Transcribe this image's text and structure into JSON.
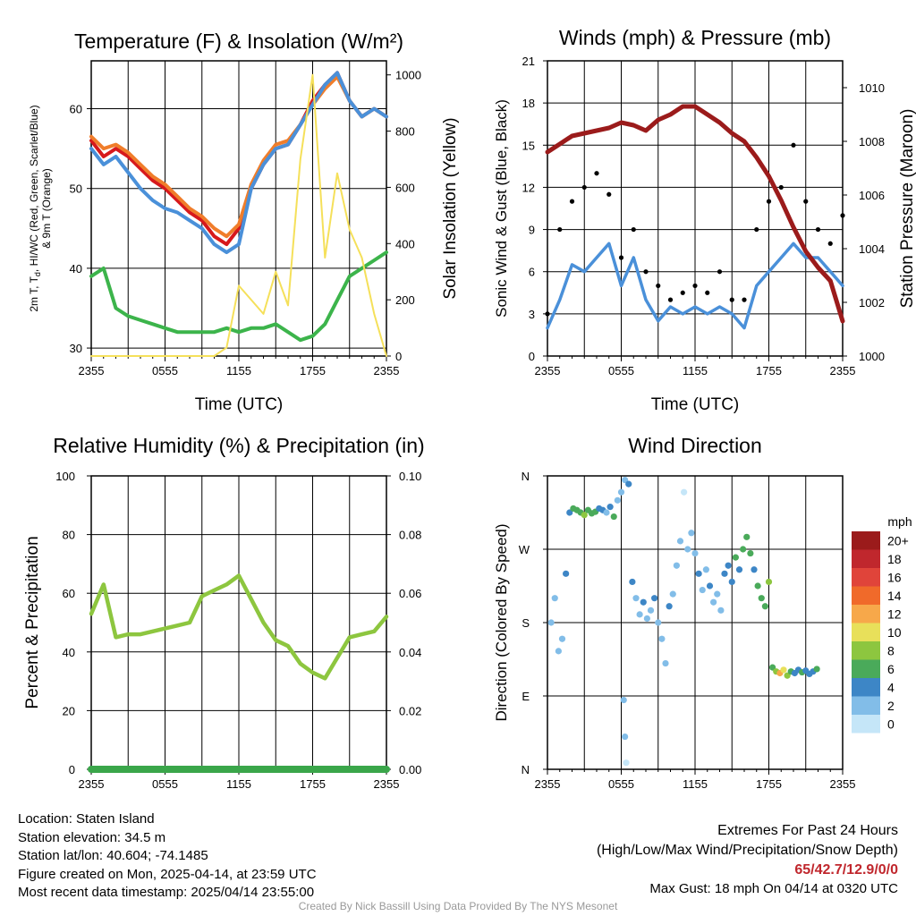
{
  "chart_data": [
    {
      "type": "line",
      "title": "Temperature (F) & Insolation (W/m²)",
      "xlabel": "Time (UTC)",
      "ylabel": "2m T, Td, HI/WC (Red, Green, Scarlet/Blue) & 9m T (Orange)",
      "ylabel_left_line1": "2m T, T",
      "ylabel_left_sub": "d",
      "ylabel_left_line1b": ", HI/WC (Red, Green, Scarlet/Blue)",
      "ylabel_left_line2": "& 9m T (Orange)",
      "ylabel_right": "Solar Insolation (Yellow)",
      "x_ticks": [
        "2355",
        "0555",
        "1155",
        "1755",
        "2355"
      ],
      "ylim": [
        29,
        66
      ],
      "y_ticks": [
        30,
        40,
        50,
        60
      ],
      "y2lim": [
        0,
        1050
      ],
      "y2_ticks": [
        0,
        200,
        400,
        600,
        800,
        1000
      ],
      "x_hours": [
        0,
        1,
        2,
        3,
        4,
        5,
        6,
        7,
        8,
        9,
        10,
        11,
        12,
        13,
        14,
        15,
        16,
        17,
        18,
        19,
        20,
        21,
        22,
        23,
        24
      ],
      "series": [
        {
          "name": "2m T",
          "color": "#d7191c",
          "values": [
            56,
            54,
            55,
            54,
            52.5,
            51,
            50,
            48.5,
            47,
            46,
            44,
            43,
            45,
            50,
            53,
            55,
            55.5,
            58,
            61,
            63,
            64.5,
            61,
            59,
            60,
            59
          ]
        },
        {
          "name": "9m T",
          "color": "#f07d2a",
          "values": [
            56.5,
            55,
            55.5,
            54.5,
            53,
            51.5,
            50.5,
            49,
            47.5,
            46.5,
            45,
            44,
            45.5,
            50.5,
            53.5,
            55.5,
            56,
            58,
            60.5,
            62.5,
            64,
            61,
            59,
            60,
            59
          ]
        },
        {
          "name": "HI/WC",
          "color": "#4a90d9",
          "values": [
            55,
            53,
            54,
            52,
            50,
            48.5,
            47.5,
            47,
            46,
            45,
            43,
            42,
            43,
            50,
            53,
            55,
            55.5,
            58,
            60.5,
            63,
            64.5,
            61,
            59,
            60,
            59
          ]
        },
        {
          "name": "Td",
          "color": "#3cb44b",
          "values": [
            39,
            40,
            35,
            34,
            33.5,
            33,
            32.5,
            32,
            32,
            32,
            32,
            32.5,
            32,
            32.5,
            32.5,
            33,
            32,
            31,
            31.5,
            33,
            36,
            39,
            40,
            41,
            42
          ]
        },
        {
          "name": "Solar Insolation",
          "color": "#f5e05a",
          "axis": "right",
          "values": [
            0,
            0,
            0,
            0,
            0,
            0,
            0,
            0,
            0,
            0,
            0,
            30,
            250,
            200,
            150,
            300,
            180,
            700,
            1000,
            350,
            650,
            450,
            350,
            150,
            0
          ]
        }
      ]
    },
    {
      "type": "line",
      "title": "Winds (mph) & Pressure (mb)",
      "xlabel": "Time (UTC)",
      "ylabel": "Sonic Wind & Gust (Blue, Black)",
      "ylabel_right": "Station Pressure (Maroon)",
      "x_ticks": [
        "2355",
        "0555",
        "1155",
        "1755",
        "2355"
      ],
      "ylim": [
        0,
        21
      ],
      "y_ticks": [
        0,
        3,
        6,
        9,
        12,
        15,
        18,
        21
      ],
      "y2lim": [
        1000,
        1011
      ],
      "y2_ticks": [
        1000,
        1002,
        1004,
        1006,
        1008,
        1010
      ],
      "x_hours": [
        0,
        1,
        2,
        3,
        4,
        5,
        6,
        7,
        8,
        9,
        10,
        11,
        12,
        13,
        14,
        15,
        16,
        17,
        18,
        19,
        20,
        21,
        22,
        23,
        24
      ],
      "series": [
        {
          "name": "Sonic Wind",
          "color": "#4a90d9",
          "values": [
            2,
            4,
            6.5,
            6,
            7,
            8,
            5,
            7,
            4,
            2.5,
            3.5,
            3,
            3.5,
            3,
            3.5,
            3,
            2,
            5,
            6,
            7,
            8,
            7,
            7,
            6,
            5
          ]
        },
        {
          "name": "Gust",
          "color": "#000000",
          "values": [
            3,
            9,
            11,
            12,
            13,
            11.5,
            7,
            9,
            6,
            5,
            4,
            4.5,
            5,
            4.5,
            6,
            4,
            4,
            9,
            11,
            12,
            15,
            11,
            9,
            8,
            10
          ]
        },
        {
          "name": "Station Pressure",
          "color": "#9b1b1b",
          "axis": "right",
          "values": [
            1007.6,
            1007.9,
            1008.2,
            1008.3,
            1008.4,
            1008.5,
            1008.7,
            1008.6,
            1008.4,
            1008.8,
            1009.0,
            1009.3,
            1009.3,
            1009.0,
            1008.7,
            1008.3,
            1008.0,
            1007.4,
            1006.7,
            1005.8,
            1004.8,
            1003.9,
            1003.3,
            1002.8,
            1001.3
          ]
        }
      ]
    },
    {
      "type": "line",
      "title": "Relative Humidity (%) & Precipitation (in)",
      "ylabel": "Percent & Precipitation",
      "x_ticks": [
        "2355",
        "0555",
        "1155",
        "1755",
        "2355"
      ],
      "ylim": [
        0,
        100
      ],
      "y_ticks": [
        0,
        20,
        40,
        60,
        80,
        100
      ],
      "y2lim": [
        0,
        0.1
      ],
      "y2_ticks": [
        "0.00",
        "0.02",
        "0.04",
        "0.06",
        "0.08",
        "0.10"
      ],
      "x_hours": [
        0,
        1,
        2,
        3,
        4,
        5,
        6,
        7,
        8,
        9,
        10,
        11,
        12,
        13,
        14,
        15,
        16,
        17,
        18,
        19,
        20,
        21,
        22,
        23,
        24
      ],
      "series": [
        {
          "name": "Relative Humidity",
          "color": "#8dc63f",
          "values": [
            53,
            63,
            45,
            46,
            46,
            47,
            48,
            49,
            50,
            59,
            61,
            63,
            66,
            58,
            50,
            44,
            42,
            36,
            33,
            31,
            38,
            45,
            46,
            47,
            52
          ]
        },
        {
          "name": "Precipitation",
          "color": "#3aa64a",
          "axis": "right",
          "values": [
            0,
            0,
            0,
            0,
            0,
            0,
            0,
            0,
            0,
            0,
            0,
            0,
            0,
            0,
            0,
            0,
            0,
            0,
            0,
            0,
            0,
            0,
            0,
            0,
            0
          ]
        }
      ]
    },
    {
      "type": "scatter",
      "title": "Wind Direction",
      "ylabel": "Direction (Colored By Speed)",
      "x_ticks": [
        "2355",
        "0555",
        "1155",
        "1755",
        "2355"
      ],
      "y_ticks": [
        "N",
        "E",
        "S",
        "W",
        "N"
      ],
      "ylim": [
        0,
        360
      ],
      "legend_title": "mph",
      "legend_labels": [
        "20+",
        "18",
        "16",
        "14",
        "12",
        "10",
        "8",
        "6",
        "4",
        "2",
        "0"
      ],
      "legend_colors": [
        "#9b1b1b",
        "#c0272d",
        "#e0443a",
        "#f06a2a",
        "#f7a84a",
        "#e8e05a",
        "#8dc63f",
        "#4aaa5a",
        "#3d86c6",
        "#82bde8",
        "#c5e6f8"
      ],
      "points": [
        {
          "h": 0.3,
          "dir": 180,
          "spd": 2
        },
        {
          "h": 0.6,
          "dir": 210,
          "spd": 3
        },
        {
          "h": 0.9,
          "dir": 145,
          "spd": 2
        },
        {
          "h": 1.2,
          "dir": 160,
          "spd": 3
        },
        {
          "h": 1.5,
          "dir": 240,
          "spd": 4
        },
        {
          "h": 1.8,
          "dir": 315,
          "spd": 5
        },
        {
          "h": 2.1,
          "dir": 320,
          "spd": 7
        },
        {
          "h": 2.4,
          "dir": 318,
          "spd": 6
        },
        {
          "h": 2.7,
          "dir": 315,
          "spd": 7
        },
        {
          "h": 3.0,
          "dir": 312,
          "spd": 8
        },
        {
          "h": 3.3,
          "dir": 318,
          "spd": 6
        },
        {
          "h": 3.6,
          "dir": 314,
          "spd": 7
        },
        {
          "h": 3.9,
          "dir": 316,
          "spd": 6
        },
        {
          "h": 4.2,
          "dir": 320,
          "spd": 5
        },
        {
          "h": 4.5,
          "dir": 318,
          "spd": 4
        },
        {
          "h": 4.8,
          "dir": 315,
          "spd": 3
        },
        {
          "h": 5.1,
          "dir": 322,
          "spd": 5
        },
        {
          "h": 5.4,
          "dir": 310,
          "spd": 6
        },
        {
          "h": 5.7,
          "dir": 330,
          "spd": 3
        },
        {
          "h": 6.0,
          "dir": 340,
          "spd": 2
        },
        {
          "h": 6.3,
          "dir": 355,
          "spd": 3
        },
        {
          "h": 6.6,
          "dir": 350,
          "spd": 4
        },
        {
          "h": 6.2,
          "dir": 85,
          "spd": 3
        },
        {
          "h": 6.3,
          "dir": 40,
          "spd": 2
        },
        {
          "h": 6.4,
          "dir": 8,
          "spd": 1
        },
        {
          "h": 6.9,
          "dir": 230,
          "spd": 4
        },
        {
          "h": 7.2,
          "dir": 210,
          "spd": 3
        },
        {
          "h": 7.5,
          "dir": 190,
          "spd": 2
        },
        {
          "h": 7.8,
          "dir": 205,
          "spd": 4
        },
        {
          "h": 8.1,
          "dir": 185,
          "spd": 3
        },
        {
          "h": 8.4,
          "dir": 195,
          "spd": 2
        },
        {
          "h": 8.7,
          "dir": 210,
          "spd": 4
        },
        {
          "h": 9.0,
          "dir": 180,
          "spd": 3
        },
        {
          "h": 9.3,
          "dir": 160,
          "spd": 2
        },
        {
          "h": 9.6,
          "dir": 130,
          "spd": 3
        },
        {
          "h": 9.9,
          "dir": 200,
          "spd": 4
        },
        {
          "h": 10.2,
          "dir": 215,
          "spd": 3
        },
        {
          "h": 10.5,
          "dir": 250,
          "spd": 2
        },
        {
          "h": 10.8,
          "dir": 280,
          "spd": 3
        },
        {
          "h": 11.1,
          "dir": 340,
          "spd": 1
        },
        {
          "h": 11.4,
          "dir": 270,
          "spd": 2
        },
        {
          "h": 11.7,
          "dir": 290,
          "spd": 3
        },
        {
          "h": 12.0,
          "dir": 265,
          "spd": 2
        },
        {
          "h": 12.3,
          "dir": 240,
          "spd": 4
        },
        {
          "h": 12.6,
          "dir": 220,
          "spd": 3
        },
        {
          "h": 12.9,
          "dir": 245,
          "spd": 2
        },
        {
          "h": 13.2,
          "dir": 225,
          "spd": 4
        },
        {
          "h": 13.5,
          "dir": 205,
          "spd": 2
        },
        {
          "h": 13.8,
          "dir": 215,
          "spd": 3
        },
        {
          "h": 14.1,
          "dir": 195,
          "spd": 2
        },
        {
          "h": 14.4,
          "dir": 240,
          "spd": 4
        },
        {
          "h": 14.7,
          "dir": 250,
          "spd": 5
        },
        {
          "h": 15.0,
          "dir": 230,
          "spd": 4
        },
        {
          "h": 15.3,
          "dir": 260,
          "spd": 6
        },
        {
          "h": 15.6,
          "dir": 245,
          "spd": 5
        },
        {
          "h": 15.9,
          "dir": 270,
          "spd": 6
        },
        {
          "h": 16.2,
          "dir": 285,
          "spd": 7
        },
        {
          "h": 16.5,
          "dir": 265,
          "spd": 6
        },
        {
          "h": 16.8,
          "dir": 245,
          "spd": 5
        },
        {
          "h": 17.1,
          "dir": 225,
          "spd": 6
        },
        {
          "h": 17.4,
          "dir": 210,
          "spd": 7
        },
        {
          "h": 17.7,
          "dir": 200,
          "spd": 6
        },
        {
          "h": 18.0,
          "dir": 230,
          "spd": 8
        },
        {
          "h": 18.3,
          "dir": 125,
          "spd": 7
        },
        {
          "h": 18.6,
          "dir": 120,
          "spd": 9
        },
        {
          "h": 18.9,
          "dir": 118,
          "spd": 12
        },
        {
          "h": 19.2,
          "dir": 122,
          "spd": 10
        },
        {
          "h": 19.5,
          "dir": 115,
          "spd": 8
        },
        {
          "h": 19.8,
          "dir": 120,
          "spd": 6
        },
        {
          "h": 20.1,
          "dir": 118,
          "spd": 5
        },
        {
          "h": 20.4,
          "dir": 122,
          "spd": 4
        },
        {
          "h": 20.7,
          "dir": 119,
          "spd": 6
        },
        {
          "h": 21.0,
          "dir": 121,
          "spd": 5
        },
        {
          "h": 21.3,
          "dir": 117,
          "spd": 4
        },
        {
          "h": 21.6,
          "dir": 120,
          "spd": 5
        },
        {
          "h": 21.9,
          "dir": 123,
          "spd": 6
        }
      ]
    }
  ],
  "info": {
    "location": "Location: Staten Island",
    "elevation": "Station elevation: 34.5 m",
    "latlon": "Station lat/lon: 40.604; -74.1485",
    "created": "Figure created on Mon, 2025-04-14, at 23:59 UTC",
    "recent": "Most recent data timestamp: 2025/04/14 23:55:00"
  },
  "extremes": {
    "title": "Extremes For Past 24 Hours",
    "subtitle": "(High/Low/Max Wind/Precipitation/Snow Depth)",
    "values": "65/42.7/12.9/0/0",
    "gust": "Max Gust: 18 mph On 04/14 at 0320 UTC"
  },
  "credit": "Created By Nick Bassill Using Data Provided By The NYS Mesonet"
}
